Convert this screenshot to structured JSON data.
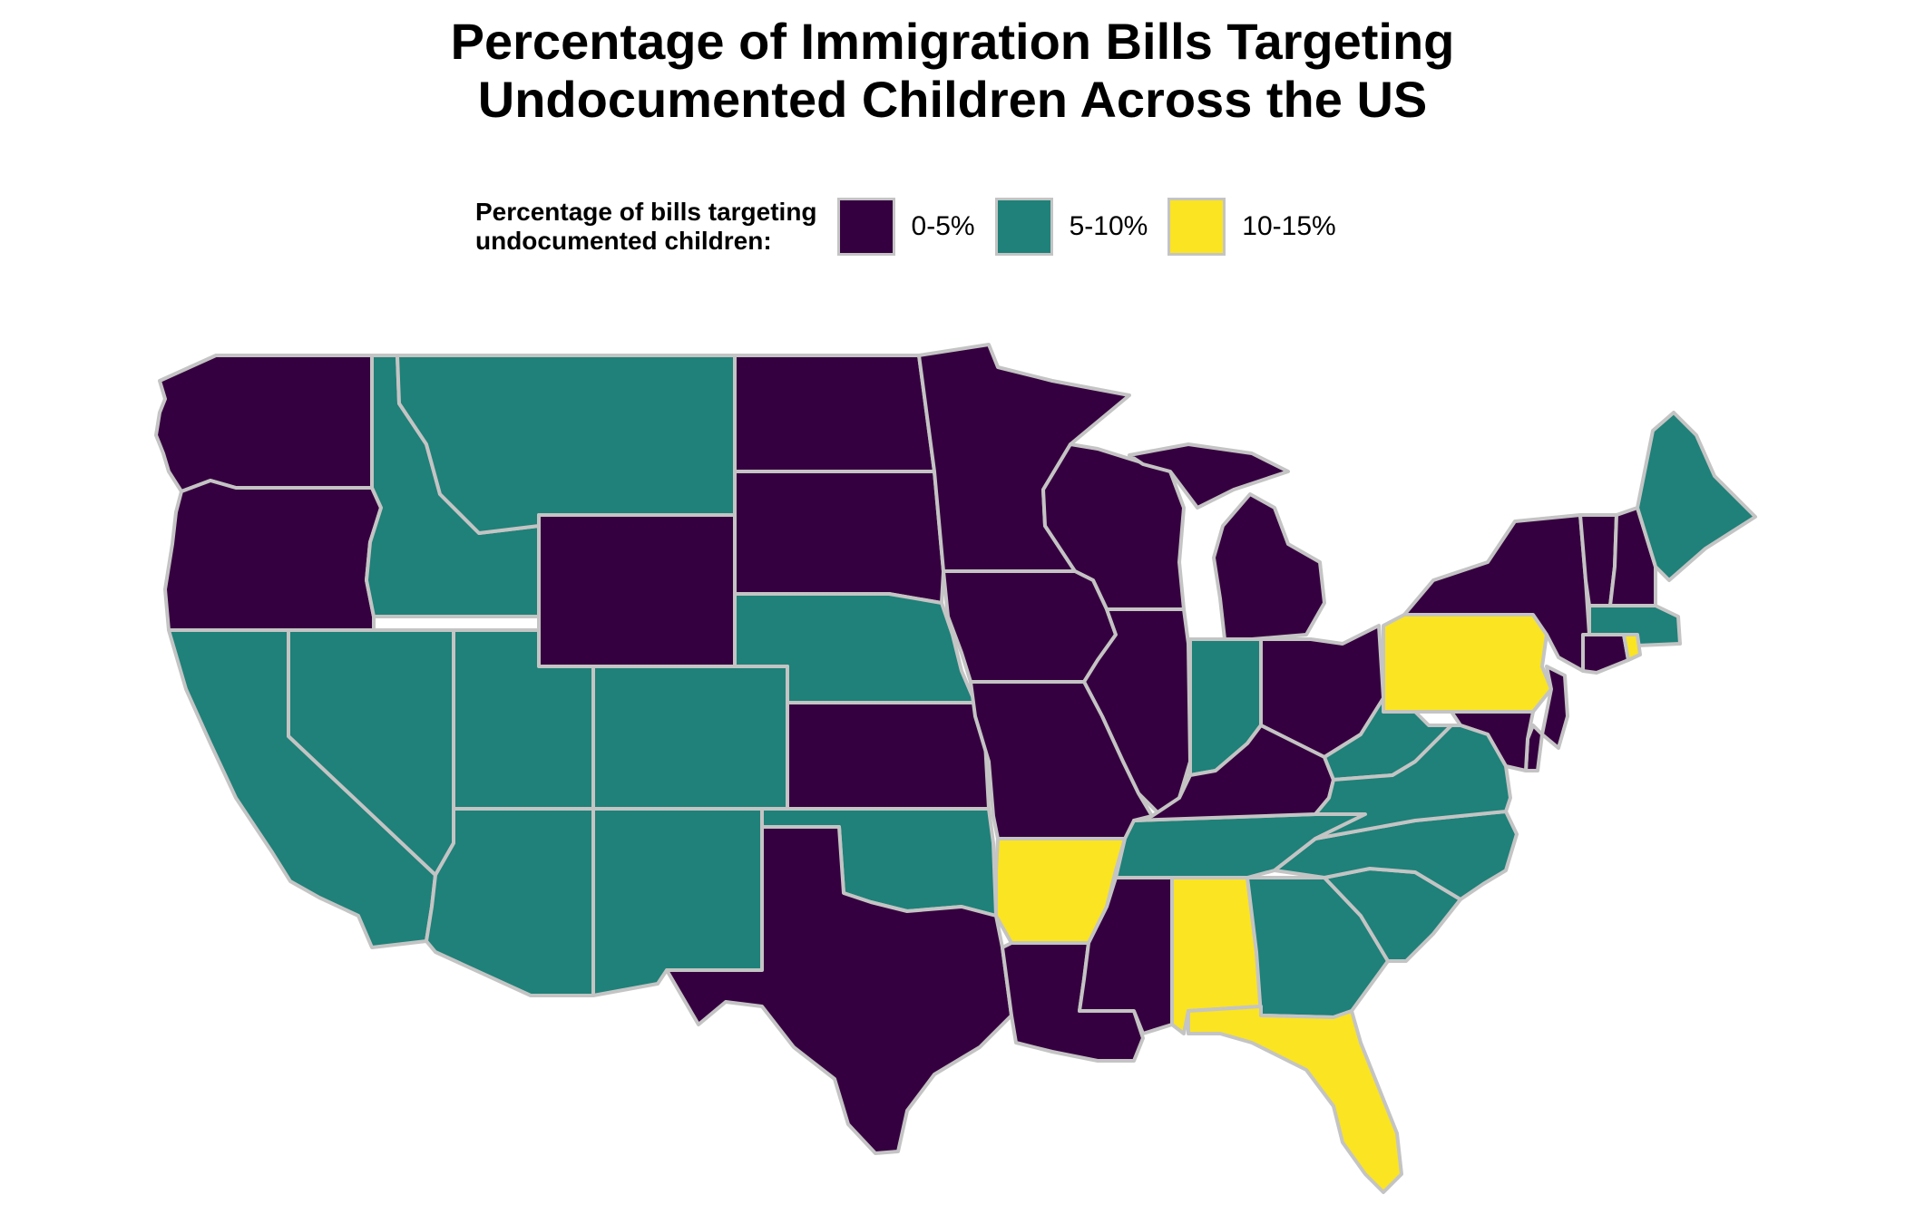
{
  "title": {
    "line1": "Percentage of Immigration Bills Targeting",
    "line2": "Undocumented Children Across the US"
  },
  "legend": {
    "title_line1": "Percentage of bills targeting",
    "title_line2": "undocumented children:",
    "items": [
      {
        "label": "0-5%",
        "color": "#35003f"
      },
      {
        "label": "5-10%",
        "color": "#1f8179"
      },
      {
        "label": "10-15%",
        "color": "#fbe421"
      }
    ]
  },
  "chart_data": {
    "type": "choropleth",
    "region": "contiguous United States",
    "categories": [
      "0-5%",
      "5-10%",
      "10-15%"
    ],
    "palette": {
      "0-5%": "#35003f",
      "5-10%": "#1f8179",
      "10-15%": "#fbe421"
    },
    "border_color": "#c4c4c4",
    "states": {
      "Washington": "0-5%",
      "Oregon": "0-5%",
      "Idaho": "5-10%",
      "Montana": "5-10%",
      "Wyoming": "0-5%",
      "North Dakota": "0-5%",
      "South Dakota": "0-5%",
      "Nebraska": "5-10%",
      "Minnesota": "0-5%",
      "Wisconsin": "0-5%",
      "Iowa": "0-5%",
      "Illinois": "0-5%",
      "Michigan": "0-5%",
      "Indiana": "5-10%",
      "Ohio": "0-5%",
      "California": "5-10%",
      "Nevada": "5-10%",
      "Utah": "5-10%",
      "Colorado": "5-10%",
      "Arizona": "5-10%",
      "New Mexico": "5-10%",
      "Kansas": "0-5%",
      "Oklahoma": "5-10%",
      "Texas": "0-5%",
      "Missouri": "0-5%",
      "Arkansas": "10-15%",
      "Louisiana": "0-5%",
      "Mississippi": "0-5%",
      "Alabama": "10-15%",
      "Georgia": "5-10%",
      "Florida": "10-15%",
      "South Carolina": "5-10%",
      "North Carolina": "5-10%",
      "Tennessee": "5-10%",
      "Kentucky": "0-5%",
      "Virginia": "5-10%",
      "West Virginia": "5-10%",
      "Pennsylvania": "10-15%",
      "New York": "0-5%",
      "Vermont": "0-5%",
      "New Hampshire": "0-5%",
      "Maine": "5-10%",
      "Massachusetts": "5-10%",
      "Rhode Island": "10-15%",
      "Connecticut": "0-5%",
      "New Jersey": "0-5%",
      "Delaware": "0-5%",
      "Maryland": "0-5%"
    }
  }
}
